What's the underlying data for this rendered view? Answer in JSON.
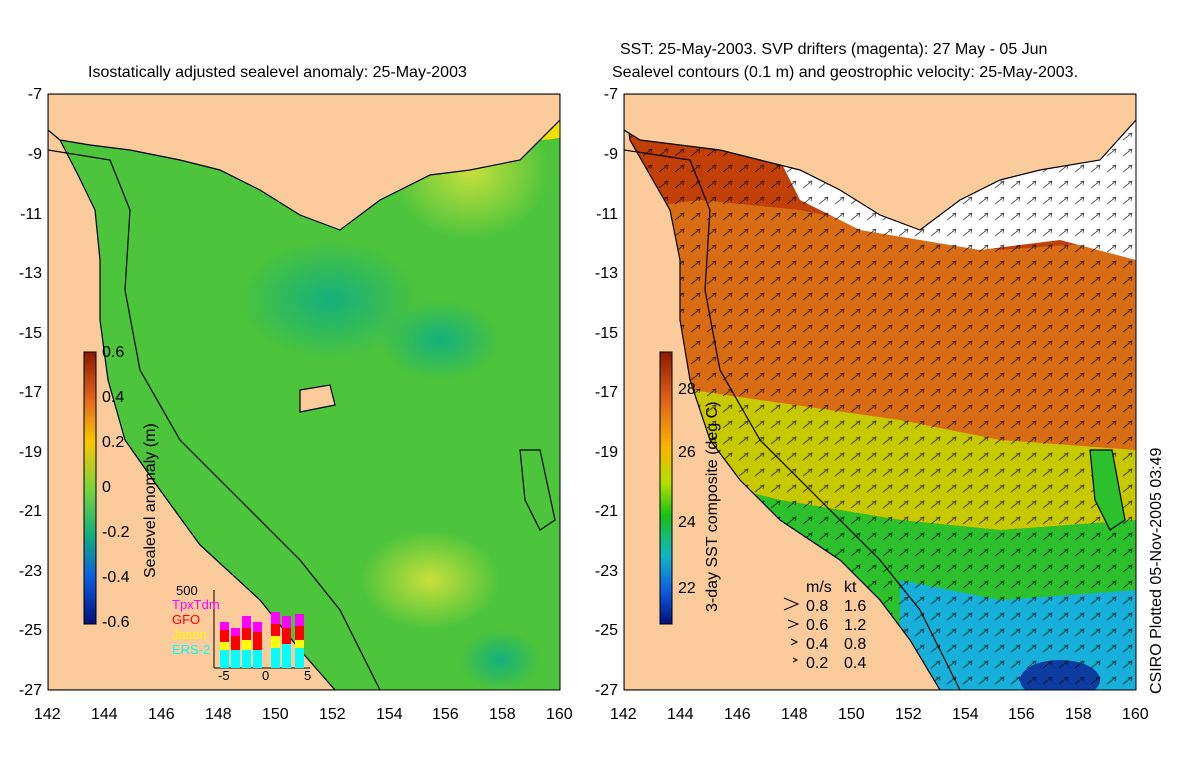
{
  "left_panel": {
    "title": "Isostatically adjusted sealevel anomaly: 25-May-2003",
    "colorbar": {
      "label": "Sealevel anomaly (m)",
      "ticks": [
        "0.6",
        "0.4",
        "0.2",
        "0",
        "-0.2",
        "-0.4",
        "-0.6"
      ]
    },
    "inset": {
      "count_label": "500",
      "missions": [
        {
          "name": "TpxTdm",
          "color": "#ff00ff"
        },
        {
          "name": "GFO",
          "color": "#ff0000"
        },
        {
          "name": "Jason",
          "color": "#ffff00"
        },
        {
          "name": "ERS-2",
          "color": "#00ffff"
        }
      ],
      "x_ticks": [
        "-5",
        "0",
        "5"
      ]
    }
  },
  "right_panel": {
    "title_line1": "SST: 25-May-2003. SVP drifters (magenta): 27 May - 05 Jun",
    "title_line2": "Sealevel contours (0.1 m) and geostrophic velocity: 25-May-2003.",
    "colorbar": {
      "label": "3-day SST composite (deg C)",
      "ticks": [
        "28",
        "26",
        "24",
        "22"
      ]
    },
    "velocity_legend": {
      "header_ms": "m/s",
      "header_kt": "kt",
      "rows": [
        {
          "ms": "0.8",
          "kt": "1.6"
        },
        {
          "ms": "0.6",
          "kt": "1.2"
        },
        {
          "ms": "0.4",
          "kt": "0.8"
        },
        {
          "ms": "0.2",
          "kt": "0.4"
        }
      ]
    },
    "credit": "CSIRO Plotted 05-Nov-2005 03:49"
  },
  "axes": {
    "lat_ticks": [
      "-7",
      "-9",
      "-11",
      "-13",
      "-15",
      "-17",
      "-19",
      "-21",
      "-23",
      "-25",
      "-27"
    ],
    "lon_ticks": [
      "142",
      "144",
      "146",
      "148",
      "150",
      "152",
      "154",
      "156",
      "158",
      "160"
    ]
  },
  "colors": {
    "land": "#fccb9b",
    "ssh_background": "#4cc43c",
    "sst_warm": "#d86c14",
    "sst_cool": "#18b0d8"
  }
}
